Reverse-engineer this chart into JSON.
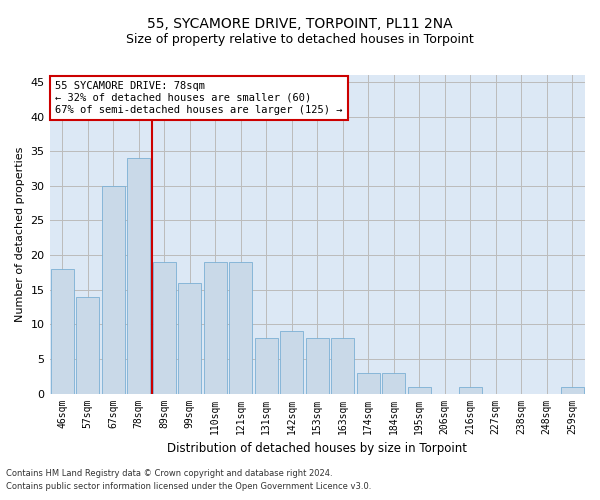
{
  "title": "55, SYCAMORE DRIVE, TORPOINT, PL11 2NA",
  "subtitle": "Size of property relative to detached houses in Torpoint",
  "xlabel": "Distribution of detached houses by size in Torpoint",
  "ylabel": "Number of detached properties",
  "footnote1": "Contains HM Land Registry data © Crown copyright and database right 2024.",
  "footnote2": "Contains public sector information licensed under the Open Government Licence v3.0.",
  "categories": [
    "46sqm",
    "57sqm",
    "67sqm",
    "78sqm",
    "89sqm",
    "99sqm",
    "110sqm",
    "121sqm",
    "131sqm",
    "142sqm",
    "153sqm",
    "163sqm",
    "174sqm",
    "184sqm",
    "195sqm",
    "206sqm",
    "216sqm",
    "227sqm",
    "238sqm",
    "248sqm",
    "259sqm"
  ],
  "values": [
    18,
    14,
    30,
    34,
    19,
    16,
    19,
    19,
    8,
    9,
    8,
    8,
    3,
    3,
    1,
    0,
    1,
    0,
    0,
    0,
    1
  ],
  "bar_color": "#c9d9e8",
  "bar_edge_color": "#7bafd4",
  "highlight_bar_index": 3,
  "highlight_line_color": "#cc0000",
  "annotation_line1": "55 SYCAMORE DRIVE: 78sqm",
  "annotation_line2": "← 32% of detached houses are smaller (60)",
  "annotation_line3": "67% of semi-detached houses are larger (125) →",
  "annotation_box_edgecolor": "#cc0000",
  "ylim": [
    0,
    46
  ],
  "yticks": [
    0,
    5,
    10,
    15,
    20,
    25,
    30,
    35,
    40,
    45
  ],
  "grid_color": "#bbbbbb",
  "bg_color": "#dce8f5",
  "title_fontsize": 10,
  "subtitle_fontsize": 9,
  "annotation_fontsize": 7.5,
  "ylabel_fontsize": 8,
  "xlabel_fontsize": 8.5,
  "tick_fontsize": 7,
  "footnote_fontsize": 6
}
